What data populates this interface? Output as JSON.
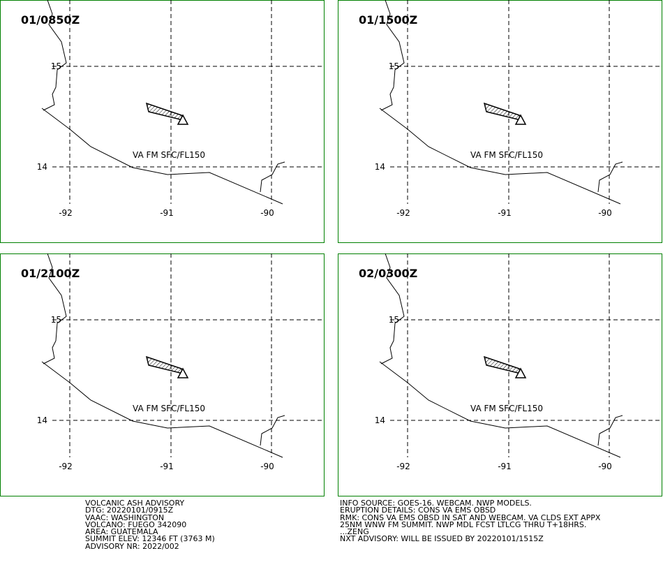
{
  "panels": [
    {
      "time": "01/0850Z",
      "layer": "VA FM SFC/FL150"
    },
    {
      "time": "01/1500Z",
      "layer": "VA FM SFC/FL150"
    },
    {
      "time": "01/2100Z",
      "layer": "VA FM SFC/FL150"
    },
    {
      "time": "02/0300Z",
      "layer": "VA FM SFC/FL150"
    }
  ],
  "lat_labels": [
    "15",
    "14"
  ],
  "lon_labels": [
    "-92",
    "-91",
    "-90"
  ],
  "advisory_left": [
    "VOLCANIC ASH ADVISORY",
    "DTG: 20220101/0915Z",
    "VAAC: WASHINGTON",
    "VOLCANO: FUEGO 342090",
    "AREA: GUATEMALA",
    "SUMMIT ELEV: 12346 FT (3763 M)",
    "ADVISORY NR: 2022/002"
  ],
  "advisory_right": [
    "INFO SOURCE: GOES-16. WEBCAM. NWP MODELS.",
    "ERUPTION DETAILS: CONS VA EMS OBSD",
    "RMK: CONS VA EMS OBSD IN SAT AND WEBCAM. VA CLDS EXT APPX",
    "25NM WNW FM SUMMIT. NWP MDL FCST LTLCG THRU T+18HRS.",
    "...ZENG",
    "NXT ADVISORY: WILL BE ISSUED BY 20220101/1515Z"
  ]
}
